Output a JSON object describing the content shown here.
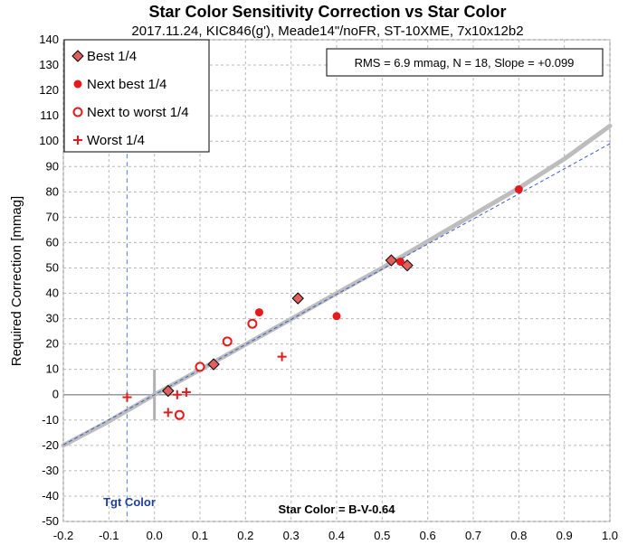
{
  "chart_data": {
    "type": "scatter",
    "title": "Star Color Sensitivity Correction vs Star Color",
    "subtitle": "2017.11.24, KIC846(g'), Meade14\"/noFR, ST-10XME, 7x10x12b2",
    "xlabel": "Star Color = B-V-0.64",
    "ylabel": "Required Correction [mmag]",
    "xlim": [
      -0.2,
      1.0
    ],
    "ylim": [
      -50,
      140
    ],
    "x_ticks": [
      "-0.2",
      "-0.1",
      "0.0",
      "0.1",
      "0.2",
      "0.3",
      "0.4",
      "0.5",
      "0.6",
      "0.7",
      "0.8",
      "0.9",
      "1.0"
    ],
    "y_ticks": [
      "140",
      "130",
      "120",
      "110",
      "100",
      "90",
      "80",
      "70",
      "60",
      "50",
      "40",
      "30",
      "20",
      "10",
      "0",
      "-10",
      "-20",
      "-30",
      "-40",
      "-50"
    ],
    "grid": true,
    "legend_position": "top-left",
    "stats": "RMS = 6.9 mmag, N = 18, Slope = +0.099",
    "target_label": "Tgt Color",
    "target_x": -0.06,
    "series": [
      {
        "name": "Best 1/4",
        "marker": "diamond",
        "color": "#e06060",
        "points": [
          [
            0.03,
            1.5
          ],
          [
            0.13,
            12
          ],
          [
            0.315,
            38
          ],
          [
            0.52,
            53
          ],
          [
            0.555,
            51
          ]
        ]
      },
      {
        "name": "Next best 1/4",
        "marker": "filled-circle",
        "color": "#e41a1c",
        "points": [
          [
            0.23,
            32.5
          ],
          [
            0.4,
            31
          ],
          [
            0.54,
            52.5
          ],
          [
            0.8,
            81
          ]
        ]
      },
      {
        "name": "Next to worst 1/4",
        "marker": "open-circle",
        "color": "#e41a1c",
        "points": [
          [
            0.055,
            -8
          ],
          [
            0.1,
            11
          ],
          [
            0.16,
            21
          ],
          [
            0.215,
            28
          ]
        ]
      },
      {
        "name": "Worst 1/4",
        "marker": "plus",
        "color": "#e41a1c",
        "points": [
          [
            -0.06,
            -1
          ],
          [
            0.03,
            -7
          ],
          [
            0.05,
            0
          ],
          [
            0.07,
            1
          ],
          [
            0.28,
            15
          ]
        ]
      }
    ],
    "fit_curve": {
      "color": "#bdbdbd",
      "points": [
        [
          -0.2,
          -20
        ],
        [
          -0.1,
          -10.5
        ],
        [
          0.0,
          0
        ],
        [
          0.1,
          9.8
        ],
        [
          0.2,
          19.8
        ],
        [
          0.3,
          29.8
        ],
        [
          0.4,
          40
        ],
        [
          0.5,
          50
        ],
        [
          0.6,
          60.5
        ],
        [
          0.7,
          71
        ],
        [
          0.8,
          81.5
        ],
        [
          0.9,
          93
        ],
        [
          1.0,
          106
        ]
      ]
    },
    "linear_fit": {
      "color": "#3b5ccc",
      "points": [
        [
          -0.2,
          -19.8
        ],
        [
          1.0,
          99
        ]
      ]
    }
  }
}
